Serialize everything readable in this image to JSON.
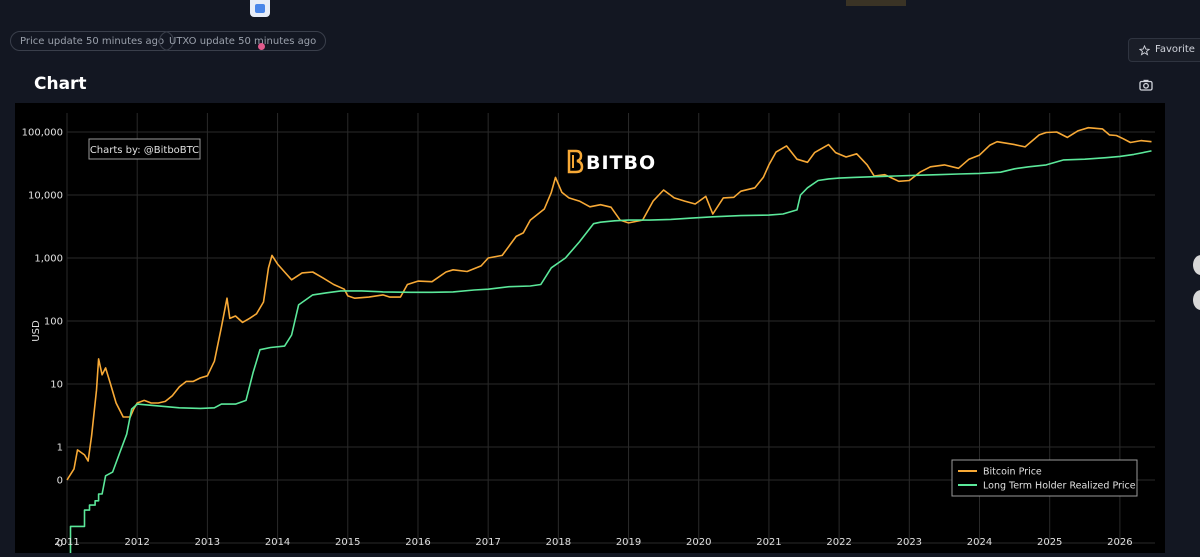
{
  "status": {
    "price_update": "Price update 50 minutes ago",
    "utxo_update": "UTXO update 50 minutes ago"
  },
  "header": {
    "favorite_label": "Favorite",
    "chart_section_title": "Chart"
  },
  "colors": {
    "price": "#f7a936",
    "lthrp": "#5be89a",
    "grid": "#2a2a2a",
    "axis_text": "#e0e0e0"
  },
  "chart_data": {
    "type": "line",
    "credit": "Charts by: @BitboBTC",
    "watermark": "BITBO",
    "ylabel": "USD",
    "yscale": "log",
    "ylim": [
      0.03,
      200000
    ],
    "y_ticks": [
      {
        "value": 0.03,
        "label": "0"
      },
      {
        "value": 0.3,
        "label": "0"
      },
      {
        "value": 1,
        "label": "1"
      },
      {
        "value": 10,
        "label": "10"
      },
      {
        "value": 100,
        "label": "100"
      },
      {
        "value": 1000,
        "label": "1,000"
      },
      {
        "value": 10000,
        "label": "10,000"
      },
      {
        "value": 100000,
        "label": "100,000"
      }
    ],
    "xlim": [
      2011.0,
      2026.5
    ],
    "x_ticks": [
      "2011",
      "2012",
      "2013",
      "2014",
      "2015",
      "2016",
      "2017",
      "2018",
      "2019",
      "2020",
      "2021",
      "2022",
      "2023",
      "2024",
      "2025",
      "2026"
    ],
    "legend": {
      "placement": "bottom-right"
    },
    "grid": true,
    "series": [
      {
        "name": "Bitcoin Price",
        "points": [
          [
            2011.0,
            0.3
          ],
          [
            2011.1,
            0.45
          ],
          [
            2011.15,
            0.9
          ],
          [
            2011.25,
            0.75
          ],
          [
            2011.3,
            0.6
          ],
          [
            2011.35,
            1.5
          ],
          [
            2011.42,
            8
          ],
          [
            2011.45,
            25
          ],
          [
            2011.5,
            14
          ],
          [
            2011.55,
            18
          ],
          [
            2011.62,
            10
          ],
          [
            2011.7,
            5
          ],
          [
            2011.8,
            3
          ],
          [
            2011.9,
            3
          ],
          [
            2011.95,
            4
          ],
          [
            2012.0,
            5
          ],
          [
            2012.1,
            5.5
          ],
          [
            2012.2,
            5
          ],
          [
            2012.3,
            5
          ],
          [
            2012.4,
            5.3
          ],
          [
            2012.5,
            6.5
          ],
          [
            2012.6,
            9
          ],
          [
            2012.7,
            11
          ],
          [
            2012.8,
            11
          ],
          [
            2012.9,
            12.5
          ],
          [
            2013.0,
            13.5
          ],
          [
            2013.1,
            23
          ],
          [
            2013.2,
            80
          ],
          [
            2013.28,
            230
          ],
          [
            2013.32,
            110
          ],
          [
            2013.4,
            120
          ],
          [
            2013.5,
            95
          ],
          [
            2013.6,
            110
          ],
          [
            2013.7,
            130
          ],
          [
            2013.8,
            200
          ],
          [
            2013.87,
            700
          ],
          [
            2013.92,
            1100
          ],
          [
            2014.0,
            800
          ],
          [
            2014.1,
            600
          ],
          [
            2014.2,
            450
          ],
          [
            2014.35,
            580
          ],
          [
            2014.5,
            600
          ],
          [
            2014.65,
            480
          ],
          [
            2014.8,
            380
          ],
          [
            2014.95,
            320
          ],
          [
            2015.0,
            250
          ],
          [
            2015.1,
            230
          ],
          [
            2015.3,
            240
          ],
          [
            2015.5,
            260
          ],
          [
            2015.6,
            240
          ],
          [
            2015.75,
            240
          ],
          [
            2015.85,
            380
          ],
          [
            2016.0,
            430
          ],
          [
            2016.2,
            420
          ],
          [
            2016.4,
            600
          ],
          [
            2016.5,
            650
          ],
          [
            2016.7,
            610
          ],
          [
            2016.9,
            750
          ],
          [
            2017.0,
            1000
          ],
          [
            2017.2,
            1100
          ],
          [
            2017.4,
            2200
          ],
          [
            2017.5,
            2500
          ],
          [
            2017.6,
            4000
          ],
          [
            2017.8,
            6000
          ],
          [
            2017.9,
            11000
          ],
          [
            2017.96,
            19000
          ],
          [
            2018.05,
            11000
          ],
          [
            2018.15,
            9000
          ],
          [
            2018.3,
            8000
          ],
          [
            2018.45,
            6500
          ],
          [
            2018.6,
            7000
          ],
          [
            2018.75,
            6400
          ],
          [
            2018.88,
            4000
          ],
          [
            2019.0,
            3600
          ],
          [
            2019.2,
            4000
          ],
          [
            2019.35,
            8000
          ],
          [
            2019.5,
            12000
          ],
          [
            2019.65,
            9000
          ],
          [
            2019.8,
            8000
          ],
          [
            2019.95,
            7200
          ],
          [
            2020.1,
            9500
          ],
          [
            2020.2,
            5000
          ],
          [
            2020.35,
            9000
          ],
          [
            2020.5,
            9200
          ],
          [
            2020.6,
            11500
          ],
          [
            2020.8,
            13000
          ],
          [
            2020.92,
            19000
          ],
          [
            2021.0,
            30000
          ],
          [
            2021.1,
            48000
          ],
          [
            2021.25,
            60000
          ],
          [
            2021.4,
            37000
          ],
          [
            2021.55,
            33000
          ],
          [
            2021.65,
            47000
          ],
          [
            2021.85,
            63000
          ],
          [
            2021.95,
            47000
          ],
          [
            2022.1,
            40000
          ],
          [
            2022.25,
            45000
          ],
          [
            2022.4,
            30000
          ],
          [
            2022.5,
            20000
          ],
          [
            2022.65,
            21000
          ],
          [
            2022.85,
            16500
          ],
          [
            2023.0,
            17000
          ],
          [
            2023.15,
            23000
          ],
          [
            2023.3,
            28000
          ],
          [
            2023.5,
            30000
          ],
          [
            2023.7,
            26500
          ],
          [
            2023.85,
            37000
          ],
          [
            2024.0,
            43000
          ],
          [
            2024.15,
            62000
          ],
          [
            2024.25,
            70000
          ],
          [
            2024.5,
            63000
          ],
          [
            2024.65,
            58000
          ],
          [
            2024.85,
            90000
          ],
          [
            2024.95,
            98000
          ],
          [
            2025.1,
            100000
          ],
          [
            2025.25,
            82000
          ],
          [
            2025.4,
            104000
          ],
          [
            2025.55,
            117000
          ],
          [
            2025.75,
            112000
          ],
          [
            2025.85,
            90000
          ],
          [
            2025.95,
            88000
          ],
          [
            2026.05,
            78000
          ],
          [
            2026.15,
            68000
          ],
          [
            2026.3,
            73000
          ],
          [
            2026.45,
            70000
          ]
        ]
      },
      {
        "name": "Long Term Holder Realized Price",
        "points": [
          [
            2011.05,
            0.02
          ],
          [
            2011.05,
            0.055
          ],
          [
            2011.25,
            0.055
          ],
          [
            2011.25,
            0.1
          ],
          [
            2011.32,
            0.1
          ],
          [
            2011.32,
            0.12
          ],
          [
            2011.4,
            0.12
          ],
          [
            2011.4,
            0.14
          ],
          [
            2011.45,
            0.14
          ],
          [
            2011.45,
            0.18
          ],
          [
            2011.5,
            0.18
          ],
          [
            2011.55,
            0.35
          ],
          [
            2011.65,
            0.4
          ],
          [
            2011.75,
            0.8
          ],
          [
            2011.85,
            1.6
          ],
          [
            2011.92,
            4
          ],
          [
            2012.0,
            4.8
          ],
          [
            2012.3,
            4.5
          ],
          [
            2012.6,
            4.2
          ],
          [
            2012.9,
            4.1
          ],
          [
            2013.1,
            4.2
          ],
          [
            2013.2,
            4.8
          ],
          [
            2013.4,
            4.8
          ],
          [
            2013.55,
            5.5
          ],
          [
            2013.65,
            15
          ],
          [
            2013.75,
            35
          ],
          [
            2013.9,
            38
          ],
          [
            2014.1,
            40
          ],
          [
            2014.2,
            60
          ],
          [
            2014.3,
            180
          ],
          [
            2014.5,
            260
          ],
          [
            2014.7,
            280
          ],
          [
            2014.9,
            300
          ],
          [
            2015.2,
            300
          ],
          [
            2015.5,
            290
          ],
          [
            2015.9,
            285
          ],
          [
            2016.2,
            285
          ],
          [
            2016.5,
            290
          ],
          [
            2016.8,
            310
          ],
          [
            2017.0,
            320
          ],
          [
            2017.3,
            350
          ],
          [
            2017.6,
            360
          ],
          [
            2017.75,
            380
          ],
          [
            2017.9,
            700
          ],
          [
            2018.1,
            1000
          ],
          [
            2018.3,
            1800
          ],
          [
            2018.5,
            3500
          ],
          [
            2018.6,
            3700
          ],
          [
            2018.8,
            3900
          ],
          [
            2019.0,
            4000
          ],
          [
            2019.3,
            4000
          ],
          [
            2019.6,
            4100
          ],
          [
            2019.9,
            4300
          ],
          [
            2020.2,
            4500
          ],
          [
            2020.6,
            4700
          ],
          [
            2021.0,
            4800
          ],
          [
            2021.2,
            5000
          ],
          [
            2021.4,
            5800
          ],
          [
            2021.45,
            10000
          ],
          [
            2021.55,
            13000
          ],
          [
            2021.7,
            17000
          ],
          [
            2021.85,
            18000
          ],
          [
            2022.0,
            18500
          ],
          [
            2022.2,
            19000
          ],
          [
            2022.5,
            19500
          ],
          [
            2022.8,
            20000
          ],
          [
            2023.1,
            20500
          ],
          [
            2023.4,
            21000
          ],
          [
            2023.7,
            21500
          ],
          [
            2024.0,
            22000
          ],
          [
            2024.3,
            23000
          ],
          [
            2024.5,
            26000
          ],
          [
            2024.7,
            28000
          ],
          [
            2024.95,
            30000
          ],
          [
            2025.2,
            36000
          ],
          [
            2025.5,
            37000
          ],
          [
            2025.8,
            39000
          ],
          [
            2026.0,
            41000
          ],
          [
            2026.2,
            44000
          ],
          [
            2026.45,
            50000
          ]
        ]
      }
    ]
  }
}
